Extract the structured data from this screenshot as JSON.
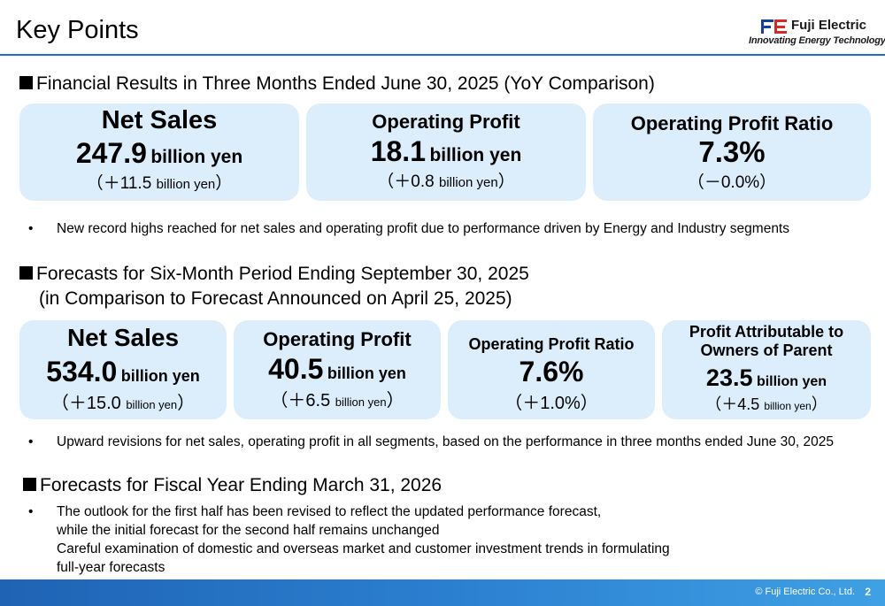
{
  "header": {
    "title": "Key Points",
    "logo_name": "Fuji Electric",
    "logo_tagline": "Innovating Energy Technology"
  },
  "section1": {
    "heading": "Financial Results in Three Months Ended June 30, 2025 (YoY Comparison)",
    "boxes": [
      {
        "label": "Net Sales",
        "value": "247.9",
        "unit": "billion yen",
        "change_prefix": "（＋11.5 ",
        "change_unit": "billion yen",
        "change_suffix": "）"
      },
      {
        "label": "Operating Profit",
        "value": "18.1",
        "unit": "billion yen",
        "change_prefix": "（＋0.8 ",
        "change_unit": "billion yen",
        "change_suffix": "）"
      },
      {
        "label": "Operating Profit Ratio",
        "value": "7.3%",
        "change": "（－0.0%）"
      }
    ],
    "bullet": "New record highs reached for net sales and operating profit due to performance driven by Energy and Industry segments"
  },
  "section2": {
    "heading": "Forecasts for Six-Month Period Ending September 30, 2025",
    "subheading": "(in Comparison to Forecast Announced on April 25, 2025)",
    "boxes": [
      {
        "label": "Net Sales",
        "value": "534.0",
        "unit": "billion yen",
        "change_prefix": "（＋15.0 ",
        "change_unit": "billion yen",
        "change_suffix": "）"
      },
      {
        "label": "Operating Profit",
        "value": "40.5",
        "unit": "billion yen",
        "change_prefix": "（＋6.5 ",
        "change_unit": "billion yen",
        "change_suffix": "）"
      },
      {
        "label": "Operating Profit Ratio",
        "value": "7.6%",
        "change": "（＋1.0%）"
      },
      {
        "label_line1": "Profit Attributable to",
        "label_line2": "Owners of Parent",
        "value": "23.5",
        "unit": "billion yen",
        "change_prefix": "（＋4.5 ",
        "change_unit": "billion yen",
        "change_suffix": "）"
      }
    ],
    "bullet": "Upward revisions for net sales, operating profit in all segments, based on the performance in three months ended June 30, 2025"
  },
  "section3": {
    "heading": "Forecasts for Fiscal Year Ending March 31, 2026",
    "bullet_lines": [
      "The outlook for the first half has been revised to reflect the updated performance forecast,",
      "while the initial forecast for the second half remains unchanged",
      "Careful examination of domestic and overseas market and customer investment trends in formulating",
      "full-year forecasts"
    ]
  },
  "footer": {
    "copyright": "© Fuji Electric Co., Ltd.",
    "page": "2"
  },
  "colors": {
    "box_fill": "#dceefb",
    "rule_blue": "#1f6fc0",
    "footer_blue": "#2b7fd0"
  }
}
